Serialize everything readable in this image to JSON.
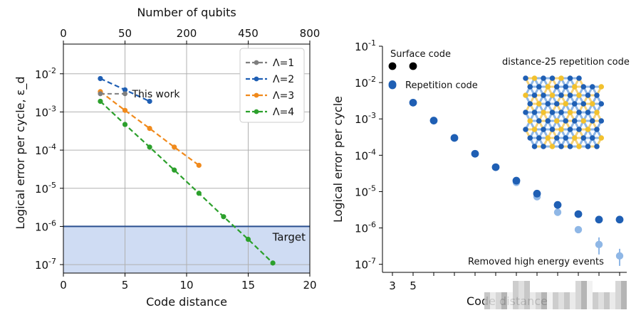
{
  "colors": {
    "gray": "#7f7f7f",
    "blue": "#1f5fb4",
    "orange": "#f08a1c",
    "green": "#2ca02c",
    "light_blue": "#8fb7e6",
    "target_fill": "#cfdcf3",
    "target_line": "#2a4f8f",
    "grid": "#b0b0b0",
    "black": "#000000",
    "yellow": "#f2c12e"
  },
  "chart_data": [
    {
      "type": "line",
      "xlabel": "Code distance",
      "ylabel": "Logical error per cycle, ε_d",
      "top_xlabel": "Number of qubits",
      "xlim": [
        0,
        20
      ],
      "ylim": [
        6e-08,
        0.06
      ],
      "yscale": "log",
      "grid": true,
      "legend_position": "top-right",
      "x_ticks": [
        "0",
        "5",
        "10",
        "15",
        "20"
      ],
      "y_ticks": [
        "10^{-2}",
        "10^{-3}",
        "10^{-4}",
        "10^{-5}",
        "10^{-6}",
        "10^{-7}"
      ],
      "top_ticks": [
        {
          "label": "0",
          "d": 0
        },
        {
          "label": "50",
          "d": 5
        },
        {
          "label": "200",
          "d": 10
        },
        {
          "label": "450",
          "d": 15
        },
        {
          "label": "800",
          "d": 20
        }
      ],
      "target": {
        "label": "Target",
        "y": 1e-06
      },
      "this_work_label": "This work",
      "this_work": {
        "x": [
          3,
          5
        ],
        "y": [
          0.003,
          0.003
        ]
      },
      "series": [
        {
          "name": "Λ=1",
          "x": [],
          "y": []
        },
        {
          "name": "Λ=2",
          "x": [
            3,
            5,
            7
          ],
          "y": [
            0.0075,
            0.0038,
            0.0019
          ]
        },
        {
          "name": "Λ=3",
          "x": [
            3,
            5,
            7,
            9,
            11
          ],
          "y": [
            0.0034,
            0.0011,
            0.00037,
            0.00012,
            4e-05
          ]
        },
        {
          "name": "Λ=4",
          "x": [
            3,
            5,
            7,
            9,
            11,
            13,
            15,
            17
          ],
          "y": [
            0.0019,
            0.00047,
            0.00012,
            3e-05,
            7.4e-06,
            1.8e-06,
            4.6e-07,
            1.1e-07
          ]
        }
      ]
    },
    {
      "type": "scatter",
      "xlabel": "Code distance",
      "ylabel": "Logical error per cycle",
      "ylim": [
        6e-08,
        0.1
      ],
      "yscale": "log",
      "x_ticks": [
        "3",
        "5"
      ],
      "y_ticks": [
        "10^{-1}",
        "10^{-2}",
        "10^{-3}",
        "10^{-4}",
        "10^{-5}",
        "10^{-6}",
        "10^{-7}"
      ],
      "inset_title": "distance-25 repetition code",
      "series": [
        {
          "name": "Surface code",
          "x": [
            3,
            5
          ],
          "y": [
            0.03,
            0.03
          ]
        },
        {
          "name": "Repetition code",
          "x": [
            3,
            5,
            7,
            9,
            11,
            13,
            15,
            17,
            19,
            21,
            23,
            25
          ],
          "y": [
            0.009,
            0.0028,
            0.0009,
            0.0003,
            0.00011,
            4.7e-05,
            2e-05,
            8.8e-06,
            4.3e-06,
            2.4e-06,
            1.7e-06,
            1.7e-06
          ]
        },
        {
          "name": "Removed high energy events",
          "x": [
            15,
            17,
            19,
            21,
            23,
            25
          ],
          "y": [
            1.8e-05,
            7.2e-06,
            2.7e-06,
            9e-07,
            3.5e-07,
            1.7e-07
          ]
        }
      ]
    }
  ]
}
